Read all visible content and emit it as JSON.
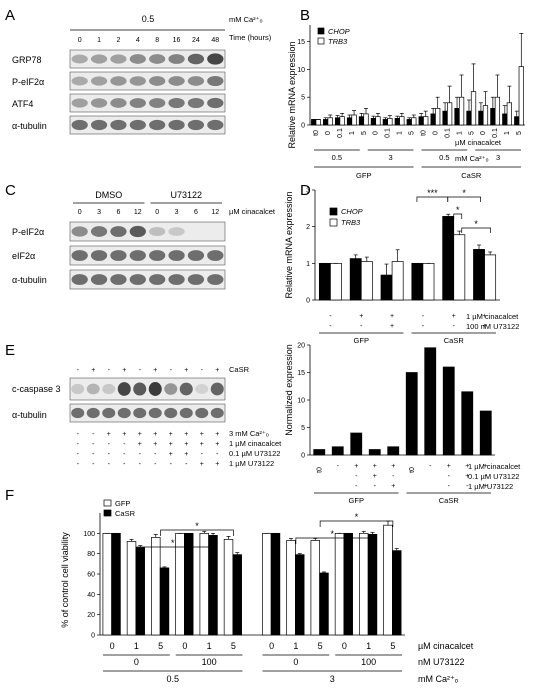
{
  "panels": {
    "A": {
      "letter": "A",
      "concentration": "0.5",
      "concentration_unit": "mM Ca²⁺ₒ",
      "time_label": "Time (hours)",
      "times": [
        "0",
        "1",
        "2",
        "4",
        "8",
        "16",
        "24",
        "48"
      ],
      "rows": [
        "GRP78",
        "P-eIF2α",
        "ATF4",
        "α-tubulin"
      ]
    },
    "B": {
      "letter": "B",
      "ylabel": "Relative mRNA expression",
      "legend": [
        "CHOP",
        "TRB3"
      ],
      "x_rows": {
        "cinacalcet": [
          "t0",
          "0",
          "0.1",
          "1",
          "5",
          "0",
          "0.1",
          "1",
          "5",
          "t0",
          "0",
          "0.1",
          "1",
          "5",
          "0",
          "0.1",
          "1",
          "5"
        ],
        "cinacalcet_label": "µM cinacalcet",
        "calcium": [
          "0.5",
          "3",
          "0.5",
          "3"
        ],
        "calcium_label": "mM Ca²⁺ₒ",
        "groups": [
          "GFP",
          "CaSR"
        ]
      }
    },
    "C": {
      "letter": "C",
      "groups": [
        "DMSO",
        "U73122"
      ],
      "doses": [
        "0",
        "3",
        "6",
        "12",
        "0",
        "3",
        "6",
        "12"
      ],
      "dose_label": "µM cinacalcet",
      "rows": [
        "P-eIF2α",
        "eIF2α",
        "α-tubulin"
      ]
    },
    "D": {
      "letter": "D",
      "ylabel": "Relative mRNA expression",
      "legend": [
        "CHOP",
        "TRB3"
      ],
      "significance": [
        "***",
        "*",
        "*",
        "*"
      ],
      "x_rows": {
        "cinacalcet": [
          "-",
          "+",
          "+",
          "-",
          "+",
          "+"
        ],
        "cinacalcet_label": "1 µM cinacalcet",
        "u73122": [
          "-",
          "-",
          "+",
          "-",
          "-",
          "+"
        ],
        "u73122_label": "100 nM U73122",
        "groups": [
          "GFP",
          "CaSR"
        ]
      }
    },
    "E": {
      "letter": "E",
      "casr": [
        "-",
        "+",
        "-",
        "+",
        "-",
        "+",
        "-",
        "+",
        "-",
        "+"
      ],
      "casr_label": "CaSR",
      "rows": [
        "c-caspase 3",
        "α-tubulin"
      ],
      "calcium": [
        "-",
        "-",
        "+",
        "+",
        "+",
        "+",
        "+",
        "+",
        "+",
        "+"
      ],
      "calcium_label": "3 mM Ca²⁺ₒ",
      "cinacalcet": [
        "-",
        "-",
        "-",
        "-",
        "+",
        "+",
        "+",
        "+",
        "+",
        "+"
      ],
      "cinacalcet_label": "1 µM cinacalcet",
      "u01": [
        "-",
        "-",
        "-",
        "-",
        "-",
        "-",
        "+",
        "+",
        "-",
        "-"
      ],
      "u01_label": "0.1 µM U73122",
      "u1": [
        "-",
        "-",
        "-",
        "-",
        "-",
        "-",
        "-",
        "-",
        "+",
        "+"
      ],
      "u1_label": "1 µM U73122"
    },
    "E2": {
      "ylabel": "Normalized expression",
      "x_rows": {
        "cinacalcet": [
          "t0",
          "-",
          "+",
          "+",
          "+",
          "t0",
          "-",
          "+",
          "+",
          "+"
        ],
        "cinacalcet_label": "1 µM cinacalcet",
        "u01": [
          "-",
          "+",
          "-",
          "-",
          "+",
          "-"
        ],
        "u01_label": "0.1 µM U73122",
        "u1": [
          "-",
          "-",
          "+",
          "-",
          "-",
          "+"
        ],
        "u1_label": "1 µM U73122",
        "groups": [
          "GFP",
          "CaSR"
        ]
      }
    },
    "F": {
      "letter": "F",
      "ylabel": "% of control cell viability",
      "legend": [
        "GFP",
        "CaSR"
      ],
      "significance": [
        "*",
        "*",
        "*",
        "*"
      ],
      "x_rows": {
        "cinacalcet": [
          "0",
          "1",
          "5",
          "0",
          "1",
          "5",
          "0",
          "1",
          "5",
          "0",
          "1",
          "5"
        ],
        "cinacalcet_label": "µM cinacalcet",
        "u73122": [
          "0",
          "100",
          "0",
          "100"
        ],
        "u73122_label": "nM U73122",
        "calcium": [
          "0.5",
          "3"
        ],
        "calcium_label": "mM Ca²⁺ₒ"
      }
    }
  },
  "chart_data": [
    {
      "type": "bar",
      "panel": "B",
      "ylabel": "Relative mRNA expression",
      "ylim": [
        0,
        18
      ],
      "categories": [
        "t0",
        "0",
        "0.1",
        "1",
        "5",
        "0",
        "0.1",
        "1",
        "5",
        "t0",
        "0",
        "0.1",
        "1",
        "5",
        "0",
        "0.1",
        "1",
        "5"
      ],
      "series": [
        {
          "name": "CHOP",
          "values": [
            1,
            1,
            1.3,
            1.3,
            1.5,
            1.2,
            1,
            1.2,
            1,
            1.5,
            2,
            2.5,
            3,
            2.5,
            2.5,
            3,
            2,
            1.5
          ]
        },
        {
          "name": "TRB3",
          "values": [
            1,
            1.3,
            1.5,
            1.8,
            2,
            1.5,
            1.2,
            1.5,
            1.3,
            1.5,
            3,
            4,
            5,
            6,
            3.5,
            5,
            4,
            10.5
          ]
        }
      ],
      "errors": [
        [
          0,
          0.3,
          0.4,
          0.5,
          0.6,
          0.4,
          0.3,
          0.4,
          0.3,
          0.6,
          1,
          1.5,
          2,
          2,
          1.5,
          2,
          1.5,
          1
        ],
        [
          0,
          0.5,
          0.6,
          0.8,
          1,
          0.6,
          0.5,
          0.6,
          0.5,
          1,
          2,
          3,
          4,
          5,
          2.5,
          4,
          3,
          6
        ]
      ]
    },
    {
      "type": "bar",
      "panel": "D",
      "ylabel": "Relative mRNA expression",
      "ylim": [
        0,
        3
      ],
      "categories": [
        "GFP -/-",
        "GFP +/-",
        "GFP +/+",
        "CaSR -/-",
        "CaSR +/-",
        "CaSR +/+"
      ],
      "series": [
        {
          "name": "CHOP",
          "values": [
            1,
            1.13,
            0.68,
            1,
            2.28,
            1.38
          ]
        },
        {
          "name": "TRB3",
          "values": [
            1,
            1.05,
            1.05,
            1,
            1.78,
            1.23
          ]
        }
      ],
      "errors": [
        [
          0,
          0.1,
          0.3,
          0,
          0.06,
          0.12
        ],
        [
          0,
          0.12,
          0.32,
          0,
          0.1,
          0.08
        ]
      ]
    },
    {
      "type": "bar",
      "panel": "E-right",
      "ylabel": "Normalized expression",
      "ylim": [
        0,
        20
      ],
      "categories": [
        "GFP t0",
        "GFP -",
        "GFP +",
        "GFP +/0.1",
        "GFP +/1",
        "CaSR t0",
        "CaSR -",
        "CaSR +",
        "CaSR +/0.1",
        "CaSR +/1"
      ],
      "values": [
        1,
        1.5,
        4,
        1,
        1.5,
        15,
        19.5,
        16,
        11.5,
        8
      ]
    },
    {
      "type": "bar",
      "panel": "F",
      "ylabel": "% of control cell viability",
      "ylim": [
        0,
        120
      ],
      "categories": [
        "0.5/0/0",
        "0.5/0/1",
        "0.5/0/5",
        "0.5/100/0",
        "0.5/100/1",
        "0.5/100/5",
        "3/0/0",
        "3/0/1",
        "3/0/5",
        "3/100/0",
        "3/100/1",
        "3/100/5"
      ],
      "series": [
        {
          "name": "GFP",
          "values": [
            100,
            92,
            96,
            100,
            100,
            94,
            100,
            93,
            93,
            100,
            100,
            108
          ]
        },
        {
          "name": "CaSR",
          "values": [
            100,
            86,
            66,
            100,
            98,
            79,
            100,
            79,
            61,
            100,
            99,
            83
          ]
        }
      ],
      "errors": [
        [
          0,
          2,
          3,
          0,
          2,
          3,
          0,
          2,
          2,
          0,
          2,
          4
        ],
        [
          0,
          2,
          1,
          0,
          2,
          2,
          0,
          1,
          1,
          0,
          2,
          2
        ]
      ]
    }
  ]
}
